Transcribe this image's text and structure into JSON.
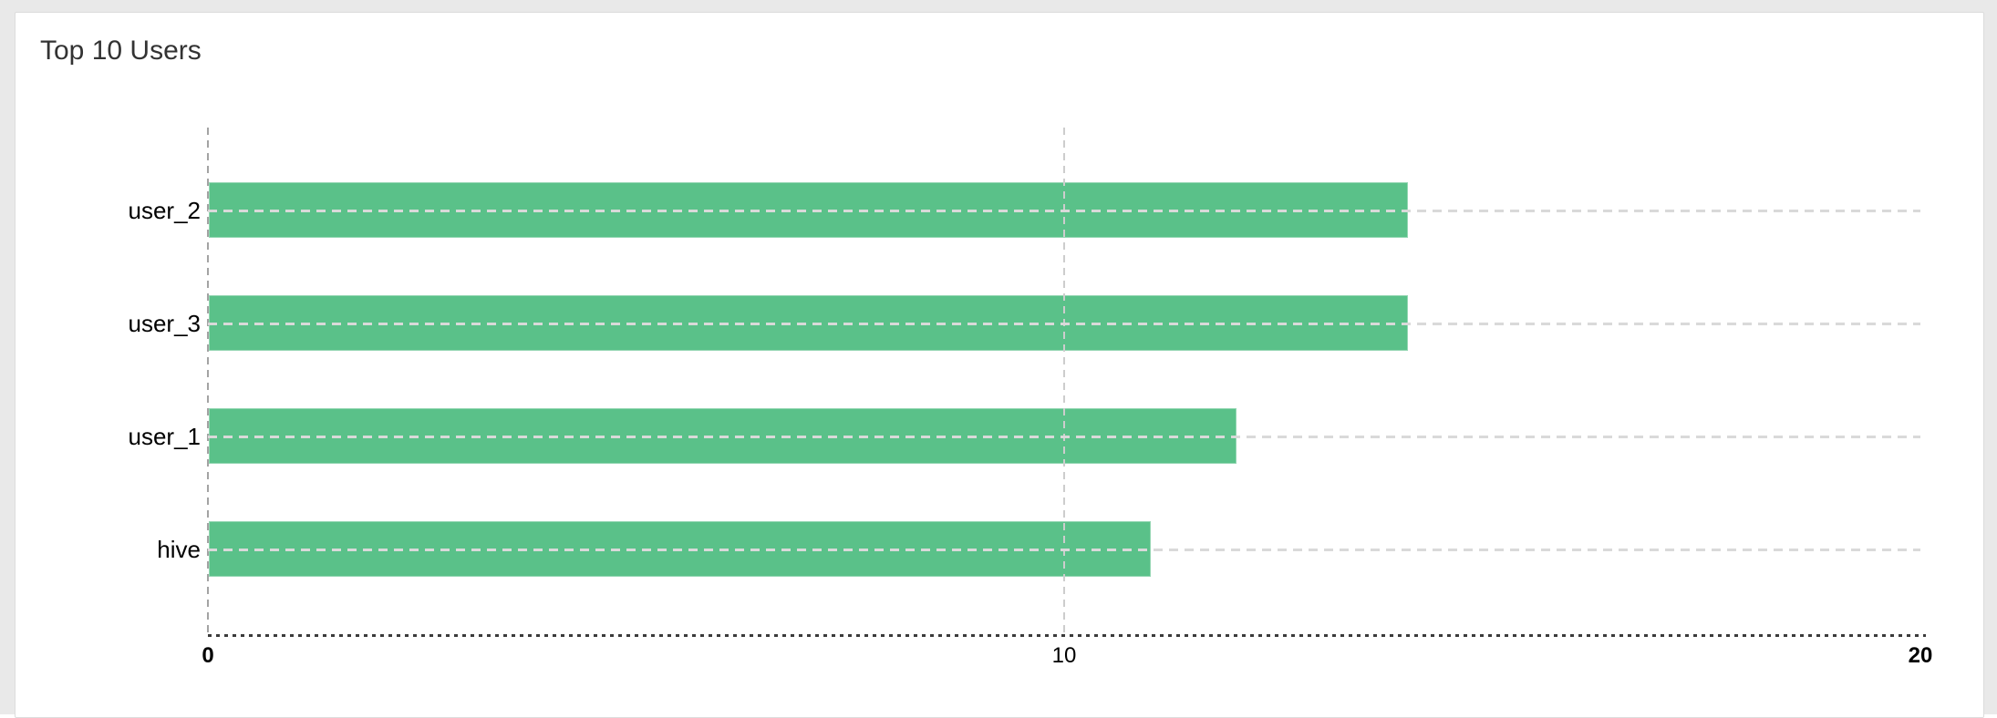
{
  "page": {
    "background": "#e9e9e9"
  },
  "card": {
    "title": "Top 10 Users",
    "background": "#ffffff"
  },
  "chart_data": {
    "type": "bar",
    "orientation": "horizontal",
    "title": "Top 10 Users",
    "categories": [
      "user_2",
      "user_3",
      "user_1",
      "hive"
    ],
    "values": [
      14,
      14,
      12,
      11
    ],
    "xlabel": "",
    "ylabel": "",
    "xlim": [
      0,
      20
    ],
    "x_ticks": [
      0,
      10,
      20
    ],
    "x_tick_labels": [
      "0",
      "10",
      "20"
    ],
    "grid": true,
    "legend_position": "none",
    "colors": {
      "bar": "#5ac189",
      "grid_row": "#d9d9d9",
      "grid_zero_line": "#a3a3a3",
      "grid_tick_line": "#cdcdcd",
      "axis_line": "#3b3b3b",
      "tick_text": "#000000",
      "category_text": "#000000",
      "title_text": "#333333"
    }
  }
}
